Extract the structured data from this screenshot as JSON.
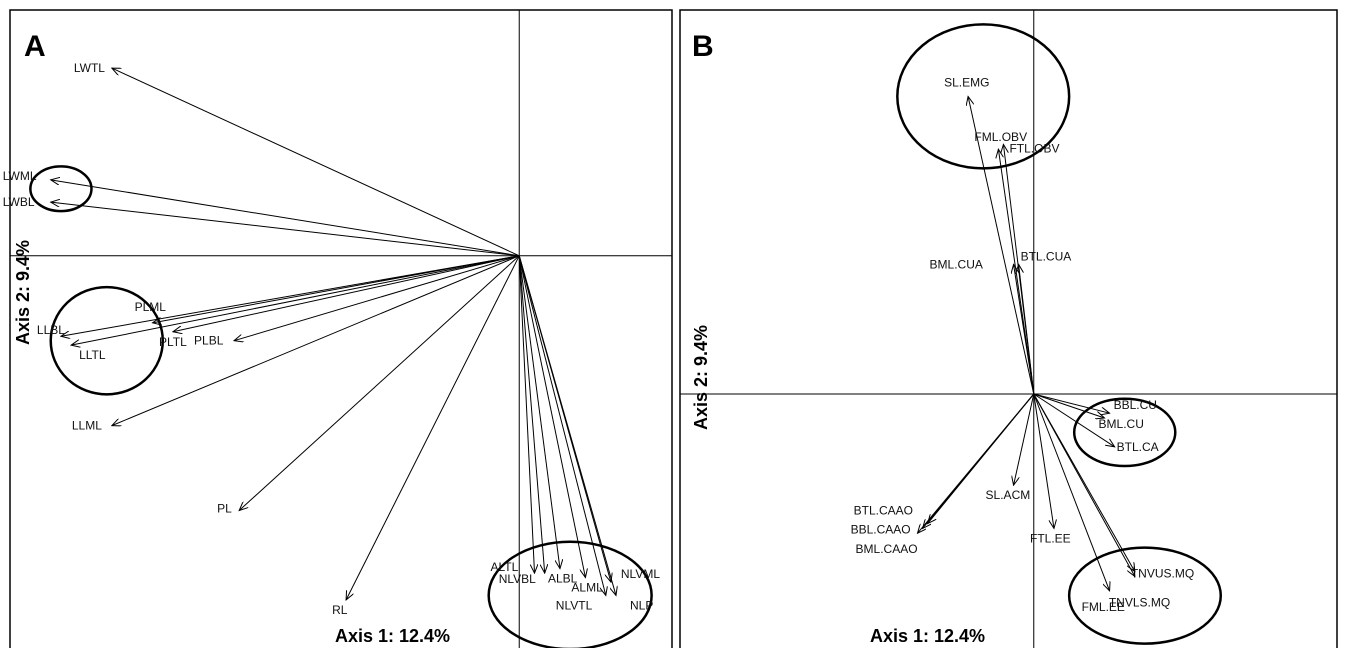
{
  "figure": {
    "panels": [
      "A",
      "B"
    ]
  },
  "chart_data": [
    {
      "type": "scatter",
      "panel": "A",
      "xlabel": "Axis 1: 12.4%",
      "ylabel": "Axis 2: 9.4%",
      "xlim": [
        -1.0,
        0.3
      ],
      "ylim": [
        -0.9,
        0.55
      ],
      "origin": [
        0,
        0
      ],
      "vectors": [
        {
          "label": "LWTL",
          "x": -0.8,
          "y": 0.42
        },
        {
          "label": "LWML",
          "x": -0.92,
          "y": 0.17
        },
        {
          "label": "LWBL",
          "x": -0.92,
          "y": 0.12
        },
        {
          "label": "PLML",
          "x": -0.72,
          "y": -0.15
        },
        {
          "label": "LLBL",
          "x": -0.9,
          "y": -0.18
        },
        {
          "label": "LLTL",
          "x": -0.88,
          "y": -0.2
        },
        {
          "label": "PLTL",
          "x": -0.68,
          "y": -0.17
        },
        {
          "label": "PLBL",
          "x": -0.56,
          "y": -0.19
        },
        {
          "label": "LLML",
          "x": -0.8,
          "y": -0.38
        },
        {
          "label": "PL",
          "x": -0.55,
          "y": -0.57
        },
        {
          "label": "RL",
          "x": -0.34,
          "y": -0.77
        },
        {
          "label": "ALTL",
          "x": 0.03,
          "y": -0.71
        },
        {
          "label": "NLVBL",
          "x": 0.05,
          "y": -0.71
        },
        {
          "label": "ALBL",
          "x": 0.08,
          "y": -0.7
        },
        {
          "label": "ALML",
          "x": 0.13,
          "y": -0.72
        },
        {
          "label": "NLVML",
          "x": 0.18,
          "y": -0.73
        },
        {
          "label": "NLVTL",
          "x": 0.17,
          "y": -0.76
        },
        {
          "label": "NLP",
          "x": 0.19,
          "y": -0.76
        }
      ],
      "ellipses": [
        {
          "cx": -0.9,
          "cy": 0.15,
          "rx": 0.06,
          "ry": 0.05
        },
        {
          "cx": -0.81,
          "cy": -0.19,
          "rx": 0.11,
          "ry": 0.12
        },
        {
          "cx": 0.1,
          "cy": -0.76,
          "rx": 0.16,
          "ry": 0.12
        }
      ],
      "grid": false
    },
    {
      "type": "scatter",
      "panel": "B",
      "xlabel": "Axis 1: 12.4%",
      "ylabel": "Axis 2: 9.4%",
      "xlim": [
        -0.7,
        0.6
      ],
      "ylim": [
        -0.55,
        0.8
      ],
      "origin": [
        0,
        0
      ],
      "vectors": [
        {
          "label": "SL.EMG",
          "x": -0.13,
          "y": 0.62
        },
        {
          "label": "FML.OBV",
          "x": -0.07,
          "y": 0.51
        },
        {
          "label": "FTL.OBV",
          "x": -0.06,
          "y": 0.52
        },
        {
          "label": "BML.CUA",
          "x": -0.04,
          "y": 0.27
        },
        {
          "label": "BTL.CUA",
          "x": -0.03,
          "y": 0.27
        },
        {
          "label": "BBL.CU",
          "x": 0.15,
          "y": -0.04
        },
        {
          "label": "BML.CU",
          "x": 0.14,
          "y": -0.05
        },
        {
          "label": "BTL.CA",
          "x": 0.16,
          "y": -0.11
        },
        {
          "label": "SL.ACM",
          "x": -0.04,
          "y": -0.19
        },
        {
          "label": "BTL.CAAO",
          "x": -0.21,
          "y": -0.27
        },
        {
          "label": "BBL.CAAO",
          "x": -0.22,
          "y": -0.28
        },
        {
          "label": "BML.CAAO",
          "x": -0.23,
          "y": -0.29
        },
        {
          "label": "FTL.EE",
          "x": 0.04,
          "y": -0.28
        },
        {
          "label": "TNVUS.MQ",
          "x": 0.2,
          "y": -0.37
        },
        {
          "label": "TNVLS.MQ",
          "x": 0.2,
          "y": -0.38
        },
        {
          "label": "FML.EE",
          "x": 0.15,
          "y": -0.41
        }
      ],
      "ellipses": [
        {
          "cx": -0.1,
          "cy": 0.62,
          "rx": 0.17,
          "ry": 0.15
        },
        {
          "cx": 0.18,
          "cy": -0.08,
          "rx": 0.1,
          "ry": 0.07
        },
        {
          "cx": 0.22,
          "cy": -0.42,
          "rx": 0.15,
          "ry": 0.1
        }
      ],
      "grid": false
    }
  ]
}
